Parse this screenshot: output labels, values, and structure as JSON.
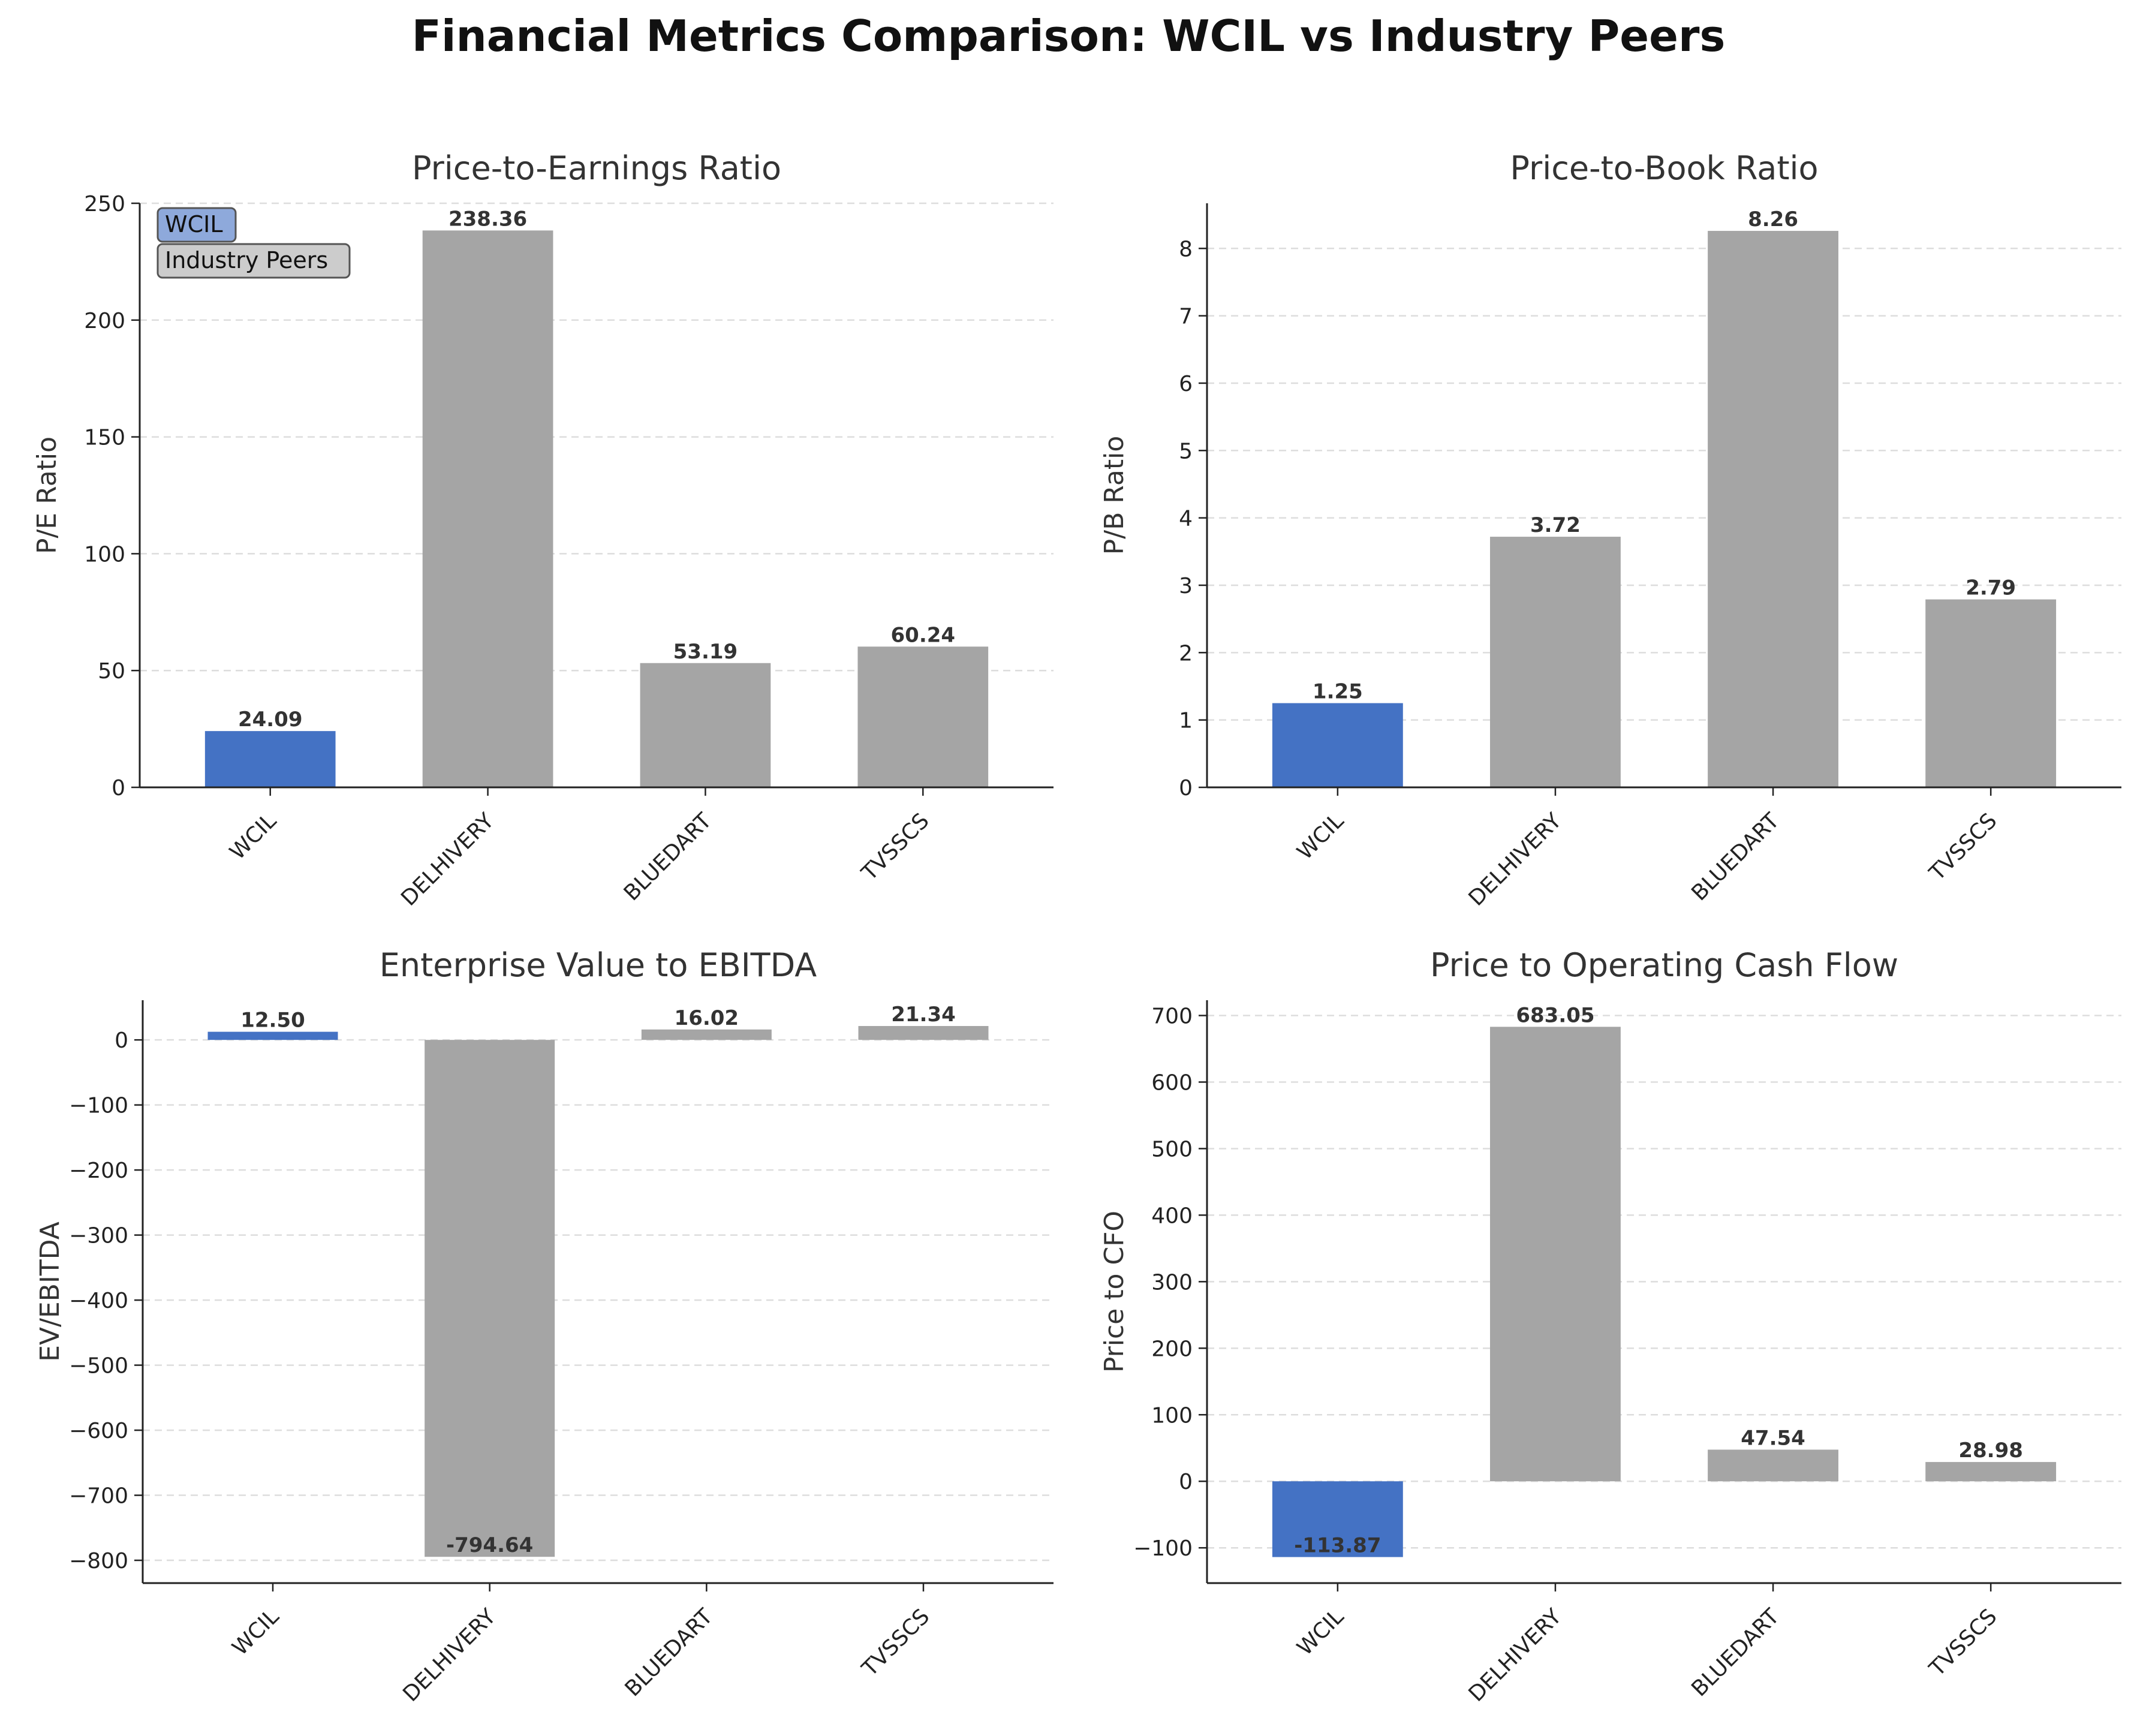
{
  "title": "Financial Metrics Comparison: WCIL vs Industry Peers",
  "colors": {
    "wcil": "#4472c4",
    "peers": "#a5a5a5",
    "axis": "#222222",
    "grid": "#dddddd",
    "text": "#222222"
  },
  "legend": {
    "items": [
      "WCIL",
      "Industry Peers"
    ],
    "placement": "top-left",
    "subplot": 0
  },
  "chart_data": [
    {
      "type": "bar",
      "title": "Price-to-Earnings Ratio",
      "ylabel": "P/E Ratio",
      "xlabel": "",
      "categories": [
        "WCIL",
        "DELHIVERY",
        "BLUEDART",
        "TVSSCS"
      ],
      "values": [
        24.09,
        238.36,
        53.19,
        60.24
      ],
      "value_labels": [
        "24.09",
        "238.36",
        "53.19",
        "60.24"
      ],
      "ylim": [
        0,
        250
      ],
      "yticks": [
        0,
        50,
        100,
        150,
        200,
        250
      ],
      "ytick_labels": [
        "0",
        "50",
        "100",
        "150",
        "200",
        "250"
      ],
      "grid": true
    },
    {
      "type": "bar",
      "title": "Price-to-Book Ratio",
      "ylabel": "P/B Ratio",
      "xlabel": "",
      "categories": [
        "WCIL",
        "DELHIVERY",
        "BLUEDART",
        "TVSSCS"
      ],
      "values": [
        1.25,
        3.72,
        8.26,
        2.79
      ],
      "value_labels": [
        "1.25",
        "3.72",
        "8.26",
        "2.79"
      ],
      "ylim": [
        0,
        8.67
      ],
      "yticks": [
        0,
        1,
        2,
        3,
        4,
        5,
        6,
        7,
        8
      ],
      "ytick_labels": [
        "0",
        "1",
        "2",
        "3",
        "4",
        "5",
        "6",
        "7",
        "8"
      ],
      "grid": true
    },
    {
      "type": "bar",
      "title": "Enterprise Value to EBITDA",
      "ylabel": "EV/EBITDA",
      "xlabel": "",
      "categories": [
        "WCIL",
        "DELHIVERY",
        "BLUEDART",
        "TVSSCS"
      ],
      "values": [
        12.5,
        -794.64,
        16.02,
        21.34
      ],
      "value_labels": [
        "12.50",
        "-794.64",
        "16.02",
        "21.34"
      ],
      "ylim": [
        -835,
        61
      ],
      "yticks": [
        -800,
        -700,
        -600,
        -500,
        -400,
        -300,
        -200,
        -100,
        0
      ],
      "ytick_labels": [
        "−800",
        "−700",
        "−600",
        "−500",
        "−400",
        "−300",
        "−200",
        "−100",
        "0"
      ],
      "grid": true
    },
    {
      "type": "bar",
      "title": "Price to Operating Cash Flow",
      "ylabel": "Price to CFO",
      "xlabel": "",
      "categories": [
        "WCIL",
        "DELHIVERY",
        "BLUEDART",
        "TVSSCS"
      ],
      "values": [
        -113.87,
        683.05,
        47.54,
        28.98
      ],
      "value_labels": [
        "-113.87",
        "683.05",
        "47.54",
        "28.98"
      ],
      "ylim": [
        -153,
        723
      ],
      "yticks": [
        -100,
        0,
        100,
        200,
        300,
        400,
        500,
        600,
        700
      ],
      "ytick_labels": [
        "−100",
        "0",
        "100",
        "200",
        "300",
        "400",
        "500",
        "600",
        "700"
      ],
      "grid": true
    }
  ]
}
